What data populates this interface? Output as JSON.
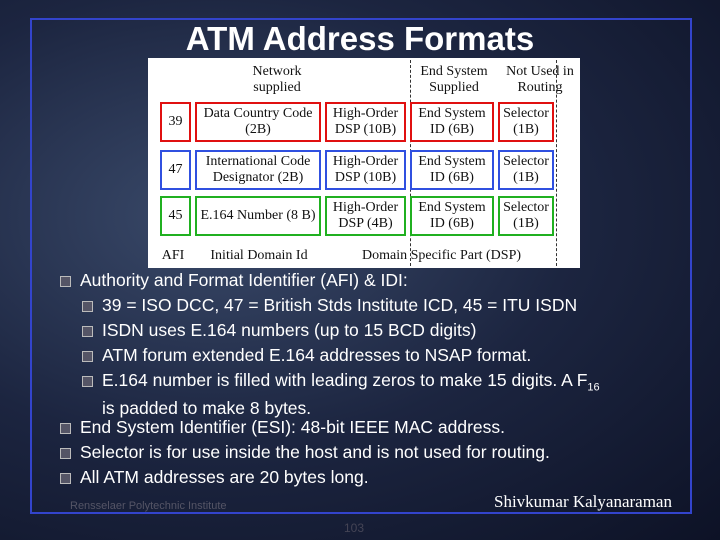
{
  "title": "ATM Address Formats",
  "diagram": {
    "header": [
      "Network supplied",
      "End System Supplied",
      "Not Used in Routing"
    ],
    "rows": [
      [
        "39",
        "Data Country Code (2B)",
        "High-Order DSP (10B)",
        "End System ID (6B)",
        "Selector (1B)"
      ],
      [
        "47",
        "International Code Designator (2B)",
        "High-Order DSP (10B)",
        "End System ID (6B)",
        "Selector (1B)"
      ],
      [
        "45",
        "E.164 Number (8 B)",
        "High-Order DSP (4B)",
        "End System ID (6B)",
        "Selector (1B)"
      ]
    ],
    "footer": [
      "AFI",
      "Initial Domain Id",
      "Domain Specific Part (DSP)"
    ]
  },
  "bullets": [
    {
      "text": "Authority and Format Identifier (AFI) & IDI:",
      "sub": [
        {
          "text": "39 = ISO DCC, 47 = British Stds Institute ICD, 45 = ITU ISDN"
        },
        {
          "text": "ISDN uses E.164 numbers (up to 15 BCD digits)"
        },
        {
          "text": "ATM forum extended E.164 addresses to NSAP format."
        },
        {
          "text": "E.164 number is filled with leading zeros to make 15 digits. A F",
          "subscript": "16",
          "tail": "is padded to make 8 bytes."
        }
      ]
    },
    {
      "text": "End System Identifier (ESI): 48-bit IEEE MAC address."
    },
    {
      "text": "Selector is for use inside the host and is not used for routing."
    },
    {
      "text": "All ATM addresses are 20 bytes long."
    }
  ],
  "footer": {
    "institute": "Rensselaer Polytechnic Institute",
    "author": "Shivkumar Kalyanaraman",
    "page": "103"
  }
}
